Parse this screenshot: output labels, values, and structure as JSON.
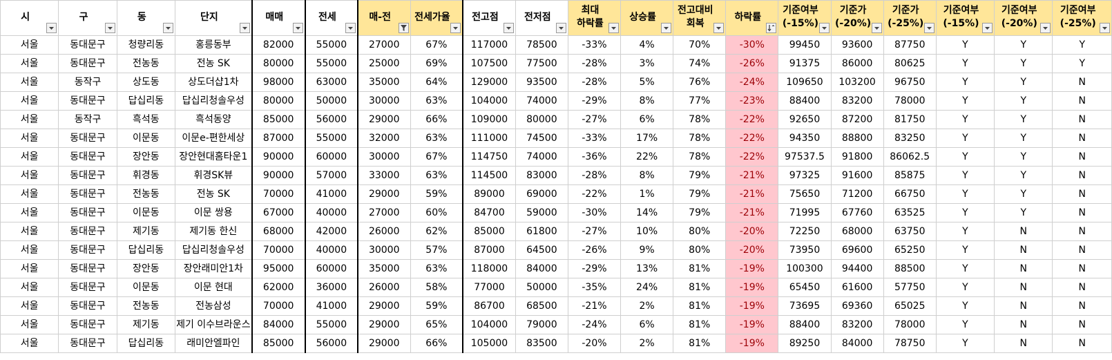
{
  "columns": [
    {
      "label": "시",
      "filter": "dropdown"
    },
    {
      "label": "구",
      "filter": "dropdown"
    },
    {
      "label": "동",
      "filter": "dropdown"
    },
    {
      "label": "단지",
      "filter": "dropdown"
    },
    {
      "label": "매매",
      "filter": "dropdown"
    },
    {
      "label": "전세",
      "filter": "dropdown"
    },
    {
      "label": "매-전",
      "filter": "funnel"
    },
    {
      "label": "전세가율",
      "filter": "dropdown"
    },
    {
      "label": "전고점",
      "filter": "dropdown"
    },
    {
      "label": "전저점",
      "filter": "dropdown"
    },
    {
      "label": "최대\n하락률",
      "filter": "dropdown"
    },
    {
      "label": "상승률",
      "filter": "dropdown"
    },
    {
      "label": "전고대비\n회복",
      "filter": "dropdown"
    },
    {
      "label": "하락률",
      "filter": "sort-desc"
    },
    {
      "label": "기준여부\n(-15%)",
      "filter": "dropdown"
    },
    {
      "label": "기준가\n(-20%)",
      "filter": "dropdown"
    },
    {
      "label": "기준가\n(-25%)",
      "filter": "dropdown"
    },
    {
      "label": "기준여부\n(-15%)",
      "filter": "dropdown"
    },
    {
      "label": "기준여부\n(-20%)",
      "filter": "dropdown"
    },
    {
      "label": "기준여부\n(-25%)",
      "filter": "dropdown"
    }
  ],
  "rows": [
    [
      "서울",
      "동대문구",
      "청량리동",
      "홍릉동부",
      "82000",
      "55000",
      "27000",
      "67%",
      "117000",
      "78500",
      "-33%",
      "4%",
      "70%",
      "-30%",
      "99450",
      "93600",
      "87750",
      "Y",
      "Y",
      "Y"
    ],
    [
      "서울",
      "동대문구",
      "전농동",
      "전농 SK",
      "80000",
      "55000",
      "25000",
      "69%",
      "107500",
      "77500",
      "-28%",
      "3%",
      "74%",
      "-26%",
      "91375",
      "86000",
      "80625",
      "Y",
      "Y",
      "Y"
    ],
    [
      "서울",
      "동작구",
      "상도동",
      "상도더샵1차",
      "98000",
      "63000",
      "35000",
      "64%",
      "129000",
      "93500",
      "-28%",
      "5%",
      "76%",
      "-24%",
      "109650",
      "103200",
      "96750",
      "Y",
      "Y",
      "N"
    ],
    [
      "서울",
      "동대문구",
      "답십리동",
      "답십리청솔우성",
      "80000",
      "50000",
      "30000",
      "63%",
      "104000",
      "74000",
      "-29%",
      "8%",
      "77%",
      "-23%",
      "88400",
      "83200",
      "78000",
      "Y",
      "Y",
      "N"
    ],
    [
      "서울",
      "동작구",
      "흑석동",
      "흑석동양",
      "85000",
      "56000",
      "29000",
      "66%",
      "109000",
      "80000",
      "-27%",
      "6%",
      "78%",
      "-22%",
      "92650",
      "87200",
      "81750",
      "Y",
      "Y",
      "N"
    ],
    [
      "서울",
      "동대문구",
      "이문동",
      "이문e-편한세상",
      "87000",
      "55000",
      "32000",
      "63%",
      "111000",
      "74500",
      "-33%",
      "17%",
      "78%",
      "-22%",
      "94350",
      "88800",
      "83250",
      "Y",
      "Y",
      "N"
    ],
    [
      "서울",
      "동대문구",
      "장안동",
      "장안현대홈타운1",
      "90000",
      "60000",
      "30000",
      "67%",
      "114750",
      "74000",
      "-36%",
      "22%",
      "78%",
      "-22%",
      "97537.5",
      "91800",
      "86062.5",
      "Y",
      "Y",
      "N"
    ],
    [
      "서울",
      "동대문구",
      "휘경동",
      "휘경SK뷰",
      "90000",
      "57000",
      "33000",
      "63%",
      "114500",
      "83000",
      "-28%",
      "8%",
      "79%",
      "-21%",
      "97325",
      "91600",
      "85875",
      "Y",
      "Y",
      "N"
    ],
    [
      "서울",
      "동대문구",
      "전농동",
      "전농 SK",
      "70000",
      "41000",
      "29000",
      "59%",
      "89000",
      "69000",
      "-22%",
      "1%",
      "79%",
      "-21%",
      "75650",
      "71200",
      "66750",
      "Y",
      "Y",
      "N"
    ],
    [
      "서울",
      "동대문구",
      "이문동",
      "이문 쌍용",
      "67000",
      "40000",
      "27000",
      "60%",
      "84700",
      "59000",
      "-30%",
      "14%",
      "79%",
      "-21%",
      "71995",
      "67760",
      "63525",
      "Y",
      "Y",
      "N"
    ],
    [
      "서울",
      "동대문구",
      "제기동",
      "제기동 한신",
      "68000",
      "42000",
      "26000",
      "62%",
      "85000",
      "61800",
      "-27%",
      "10%",
      "80%",
      "-20%",
      "72250",
      "68000",
      "63750",
      "Y",
      "N",
      "N"
    ],
    [
      "서울",
      "동대문구",
      "답십리동",
      "답십리청솔우성",
      "70000",
      "40000",
      "30000",
      "57%",
      "87000",
      "64500",
      "-26%",
      "9%",
      "80%",
      "-20%",
      "73950",
      "69600",
      "65250",
      "Y",
      "N",
      "N"
    ],
    [
      "서울",
      "동대문구",
      "장안동",
      "장안래미안1차",
      "95000",
      "60000",
      "35000",
      "63%",
      "118000",
      "84000",
      "-29%",
      "13%",
      "81%",
      "-19%",
      "100300",
      "94400",
      "88500",
      "Y",
      "N",
      "N"
    ],
    [
      "서울",
      "동대문구",
      "이문동",
      "이문 현대",
      "62000",
      "36000",
      "26000",
      "58%",
      "77000",
      "50000",
      "-35%",
      "24%",
      "81%",
      "-19%",
      "65450",
      "61600",
      "57750",
      "Y",
      "N",
      "N"
    ],
    [
      "서울",
      "동대문구",
      "전농동",
      "전농삼성",
      "70000",
      "41000",
      "29000",
      "59%",
      "86700",
      "68500",
      "-21%",
      "2%",
      "81%",
      "-19%",
      "73695",
      "69360",
      "65025",
      "Y",
      "N",
      "N"
    ],
    [
      "서울",
      "동대문구",
      "제기동",
      "제기 이수브라운스",
      "84000",
      "55000",
      "29000",
      "65%",
      "104000",
      "79000",
      "-24%",
      "6%",
      "81%",
      "-19%",
      "88400",
      "83200",
      "78000",
      "Y",
      "N",
      "N"
    ],
    [
      "서울",
      "동대문구",
      "답십리동",
      "래미안엘파인",
      "85000",
      "56000",
      "29000",
      "66%",
      "105000",
      "83500",
      "-20%",
      "2%",
      "81%",
      "-19%",
      "89250",
      "84000",
      "78750",
      "Y",
      "N",
      "N"
    ]
  ],
  "colors": {
    "header_highlight": "#ffe699",
    "decline_fill": "#ffc7ce",
    "decline_text": "#9c0006",
    "grid": "#cfcfcf"
  }
}
